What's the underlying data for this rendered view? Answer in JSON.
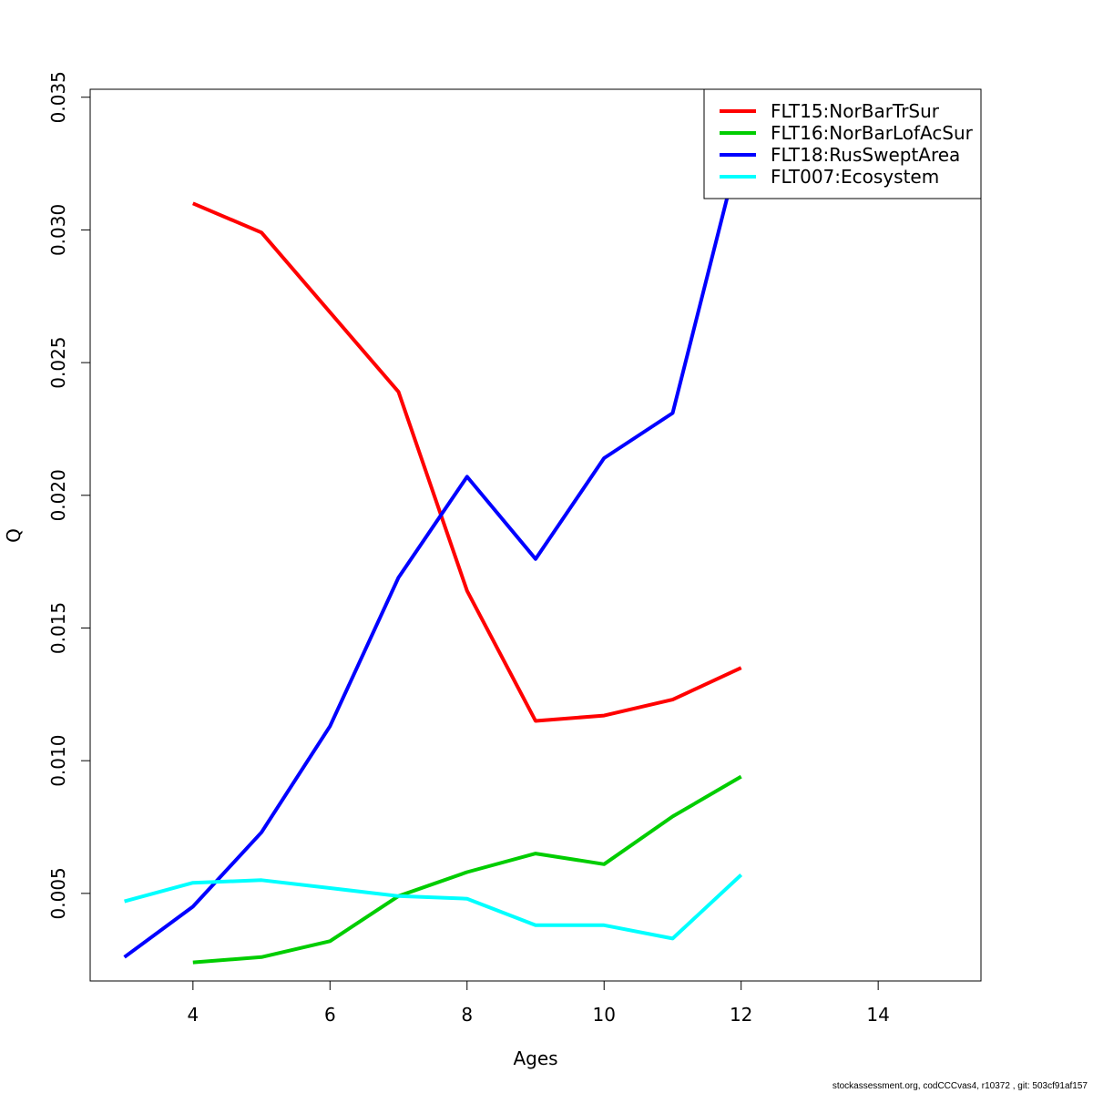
{
  "footer": "stockassessment.org, codCCCvas4, r10372 , git: 503cf91af157",
  "chart_data": {
    "type": "line",
    "title": "",
    "xlabel": "Ages",
    "ylabel": "Q",
    "xlim": [
      2.5,
      15.5
    ],
    "ylim": [
      0.0017,
      0.0353
    ],
    "xticks": [
      4,
      6,
      8,
      10,
      12,
      14
    ],
    "yticks": [
      0.005,
      0.01,
      0.015,
      0.02,
      0.025,
      0.03,
      0.035
    ],
    "ytick_labels": [
      "0.005",
      "0.010",
      "0.015",
      "0.020",
      "0.025",
      "0.030",
      "0.035"
    ],
    "grid": false,
    "legend_position": "top-right",
    "series": [
      {
        "name": "FLT15:NorBarTrSur",
        "color": "#ff0000",
        "x": [
          4,
          5,
          6,
          7,
          8,
          9,
          10,
          11,
          12
        ],
        "y": [
          0.031,
          0.0299,
          0.0269,
          0.0239,
          0.0164,
          0.0115,
          0.0117,
          0.0123,
          0.0135
        ]
      },
      {
        "name": "FLT16:NorBarLofAcSur",
        "color": "#00cd00",
        "x": [
          4,
          5,
          6,
          7,
          8,
          9,
          10,
          11,
          12
        ],
        "y": [
          0.0024,
          0.0026,
          0.0032,
          0.0049,
          0.0058,
          0.0065,
          0.0061,
          0.0079,
          0.0094
        ]
      },
      {
        "name": "FLT18:RusSweptArea",
        "color": "#0000ff",
        "x": [
          3,
          4,
          5,
          6,
          7,
          8,
          9,
          10,
          11,
          12
        ],
        "y": [
          0.0026,
          0.0045,
          0.0073,
          0.0113,
          0.0169,
          0.0207,
          0.0176,
          0.0214,
          0.0231,
          0.0333
        ]
      },
      {
        "name": "FLT007:Ecosystem",
        "color": "#00ffff",
        "x": [
          3,
          4,
          5,
          6,
          7,
          8,
          9,
          10,
          11,
          12
        ],
        "y": [
          0.0047,
          0.0054,
          0.0055,
          0.0052,
          0.0049,
          0.0048,
          0.0038,
          0.0038,
          0.0033,
          0.0057
        ]
      }
    ]
  }
}
